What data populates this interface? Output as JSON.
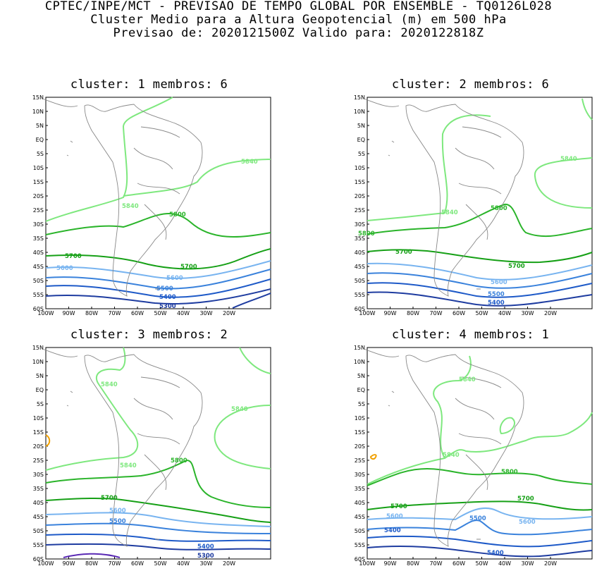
{
  "header": {
    "line1": "CPTEC/INPE/MCT - PREVISAO DE TEMPO GLOBAL POR ENSEMBLE - TQ0126L028",
    "line2": "Cluster Medio para a Altura Geopotencial (m) em 500 hPa",
    "line3": "Previsao de: 2020121500Z   Valido para: 2020122818Z"
  },
  "axes": {
    "lat_labels": [
      "15N",
      "10N",
      "5N",
      "EQ",
      "5S",
      "10S",
      "15S",
      "20S",
      "25S",
      "30S",
      "35S",
      "40S",
      "45S",
      "50S",
      "55S",
      "60S"
    ],
    "lon_labels": [
      "100W",
      "90W",
      "80W",
      "70W",
      "60W",
      "50W",
      "40W",
      "30W",
      "20W"
    ]
  },
  "colors": {
    "c5840": "#7ee87e",
    "c5800": "#2ab42a",
    "c5700": "#16a016",
    "c5600": "#78b4f0",
    "c5500": "#3a82dc",
    "c5400": "#1e5ac8",
    "c5300": "#1e3ca0",
    "c5200": "#5a2ab4",
    "c_high": "#f0a000",
    "border": "#888888"
  },
  "panels": [
    {
      "title": "cluster: 1   membros: 6",
      "labels": {
        "l5840a": "5840",
        "l5840b": "5840",
        "l5800": "5800",
        "l5700a": "5700",
        "l5700b": "5700",
        "l5600a": "5600",
        "l5600b": "5600",
        "l5500": "5500",
        "l5400": "5400",
        "l5300": "5300"
      }
    },
    {
      "title": "cluster: 2   membros: 6",
      "labels": {
        "l5840a": "5840",
        "l5840b": "5840",
        "l5800": "5800",
        "l5800b": "5800",
        "l5700a": "5700",
        "l5700b": "5700",
        "l5600": "5600",
        "l5500": "5500",
        "l5400": "5400"
      }
    },
    {
      "title": "cluster: 3   membros: 2",
      "labels": {
        "l5840a": "5840",
        "l5840b": "5840",
        "l5840c": "5840",
        "l5800": "5800",
        "l5700": "5700",
        "l5600": "5600",
        "l5500": "5500",
        "l5400": "5400",
        "l5300": "5300"
      }
    },
    {
      "title": "cluster: 4   membros: 1",
      "labels": {
        "l5840a": "5840",
        "l5840b": "5840",
        "l5800": "5800",
        "l5700a": "5700",
        "l5700b": "5700",
        "l5600a": "5600",
        "l5600b": "5600",
        "l5500": "5500",
        "l5400a": "5400",
        "l5400b": "5400"
      }
    }
  ]
}
